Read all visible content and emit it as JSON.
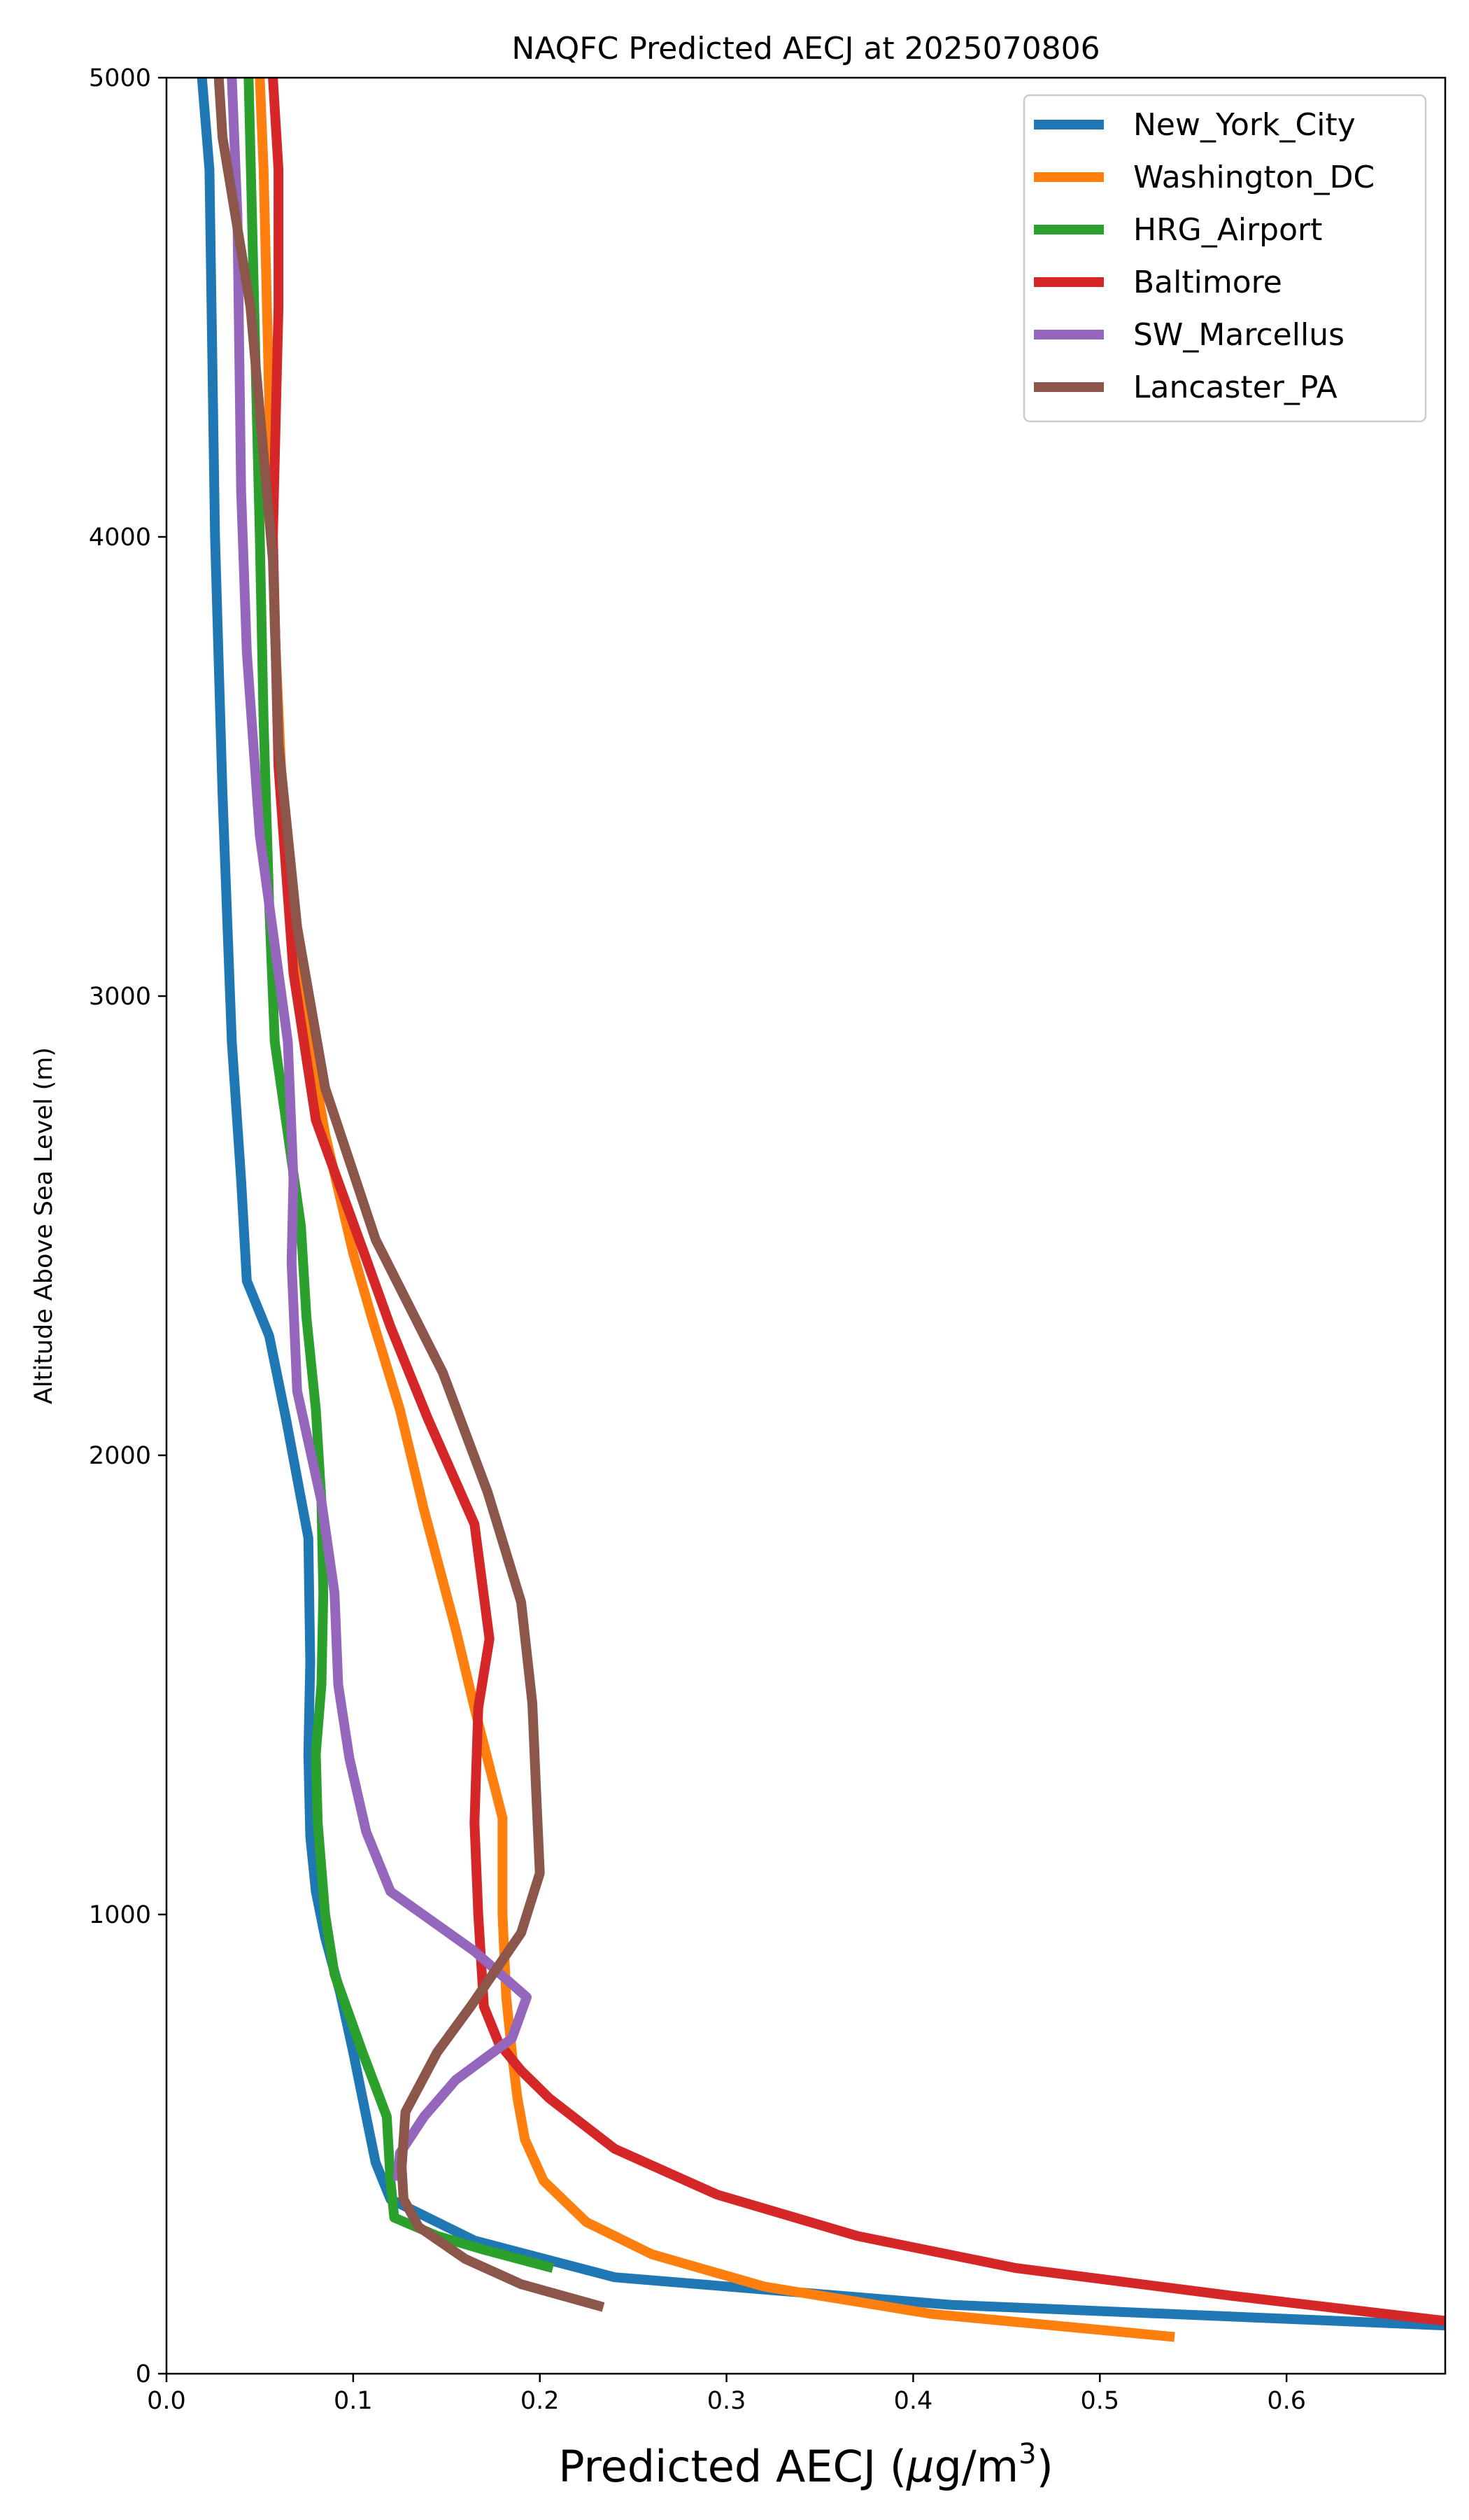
{
  "chart_data": {
    "type": "line",
    "title": "NAQFC Predicted AECJ at 2025070806",
    "xlabel_main": "Predicted AECJ (",
    "xlabel_mu": "μ",
    "xlabel_units": "g/m",
    "xlabel_sup": "3",
    "xlabel_close": ")",
    "ylabel": "Altitude Above Sea Level (m)",
    "xlim": [
      0,
      0.685
    ],
    "ylim": [
      0,
      5000
    ],
    "xticks": [
      0.0,
      0.1,
      0.2,
      0.3,
      0.4,
      0.5,
      0.6
    ],
    "xtick_labels": [
      "0.0",
      "0.1",
      "0.2",
      "0.3",
      "0.4",
      "0.5",
      "0.6"
    ],
    "yticks": [
      0,
      1000,
      2000,
      3000,
      4000,
      5000
    ],
    "ytick_labels": [
      "0",
      "1000",
      "2000",
      "3000",
      "4000",
      "5000"
    ],
    "grid": false,
    "legend_position": "top-right",
    "series": [
      {
        "name": "New_York_City",
        "color": "#1f77b4",
        "points": [
          [
            0.685,
            105
          ],
          [
            0.42,
            150
          ],
          [
            0.24,
            210
          ],
          [
            0.165,
            290
          ],
          [
            0.12,
            380
          ],
          [
            0.112,
            460
          ],
          [
            0.108,
            540
          ],
          [
            0.1,
            700
          ],
          [
            0.093,
            830
          ],
          [
            0.085,
            950
          ],
          [
            0.08,
            1050
          ],
          [
            0.077,
            1170
          ],
          [
            0.076,
            1350
          ],
          [
            0.077,
            1550
          ],
          [
            0.076,
            1820
          ],
          [
            0.064,
            2080
          ],
          [
            0.055,
            2260
          ],
          [
            0.043,
            2380
          ],
          [
            0.04,
            2600
          ],
          [
            0.035,
            2900
          ],
          [
            0.03,
            3440
          ],
          [
            0.026,
            4000
          ],
          [
            0.023,
            4800
          ],
          [
            0.019,
            5000
          ]
        ]
      },
      {
        "name": "Washington_DC",
        "color": "#ff7f0e",
        "points": [
          [
            0.54,
            80
          ],
          [
            0.41,
            130
          ],
          [
            0.32,
            190
          ],
          [
            0.26,
            260
          ],
          [
            0.225,
            330
          ],
          [
            0.202,
            420
          ],
          [
            0.192,
            510
          ],
          [
            0.188,
            600
          ],
          [
            0.185,
            700
          ],
          [
            0.182,
            820
          ],
          [
            0.18,
            1000
          ],
          [
            0.18,
            1210
          ],
          [
            0.165,
            1450
          ],
          [
            0.155,
            1620
          ],
          [
            0.138,
            1880
          ],
          [
            0.125,
            2100
          ],
          [
            0.11,
            2300
          ],
          [
            0.1,
            2440
          ],
          [
            0.085,
            2700
          ],
          [
            0.072,
            3000
          ],
          [
            0.063,
            3350
          ],
          [
            0.058,
            3800
          ],
          [
            0.055,
            4300
          ],
          [
            0.052,
            4800
          ],
          [
            0.05,
            5000
          ]
        ]
      },
      {
        "name": "HRG_Airport",
        "color": "#2ca02c",
        "points": [
          [
            0.207,
            230
          ],
          [
            0.17,
            270
          ],
          [
            0.145,
            300
          ],
          [
            0.122,
            340
          ],
          [
            0.12,
            420
          ],
          [
            0.118,
            560
          ],
          [
            0.105,
            700
          ],
          [
            0.09,
            870
          ],
          [
            0.085,
            1000
          ],
          [
            0.081,
            1200
          ],
          [
            0.08,
            1350
          ],
          [
            0.083,
            1500
          ],
          [
            0.084,
            1700
          ],
          [
            0.083,
            1900
          ],
          [
            0.08,
            2100
          ],
          [
            0.075,
            2300
          ],
          [
            0.072,
            2500
          ],
          [
            0.065,
            2700
          ],
          [
            0.058,
            2900
          ],
          [
            0.055,
            3200
          ],
          [
            0.052,
            3600
          ],
          [
            0.05,
            4000
          ],
          [
            0.047,
            4500
          ],
          [
            0.044,
            5000
          ]
        ]
      },
      {
        "name": "Baltimore",
        "color": "#d62728",
        "points": [
          [
            0.685,
            115
          ],
          [
            0.57,
            170
          ],
          [
            0.455,
            230
          ],
          [
            0.37,
            300
          ],
          [
            0.295,
            390
          ],
          [
            0.24,
            490
          ],
          [
            0.205,
            600
          ],
          [
            0.19,
            660
          ],
          [
            0.178,
            720
          ],
          [
            0.17,
            800
          ],
          [
            0.167,
            1000
          ],
          [
            0.165,
            1200
          ],
          [
            0.167,
            1450
          ],
          [
            0.173,
            1600
          ],
          [
            0.165,
            1850
          ],
          [
            0.14,
            2080
          ],
          [
            0.12,
            2280
          ],
          [
            0.105,
            2450
          ],
          [
            0.08,
            2730
          ],
          [
            0.068,
            3050
          ],
          [
            0.06,
            3500
          ],
          [
            0.057,
            4000
          ],
          [
            0.06,
            4500
          ],
          [
            0.06,
            4800
          ],
          [
            0.057,
            5000
          ]
        ]
      },
      {
        "name": "SW_Marcellus",
        "color": "#9467bd",
        "points": [
          [
            0.124,
            420
          ],
          [
            0.125,
            480
          ],
          [
            0.138,
            560
          ],
          [
            0.155,
            640
          ],
          [
            0.185,
            730
          ],
          [
            0.193,
            820
          ],
          [
            0.165,
            920
          ],
          [
            0.12,
            1050
          ],
          [
            0.107,
            1180
          ],
          [
            0.098,
            1340
          ],
          [
            0.092,
            1500
          ],
          [
            0.09,
            1700
          ],
          [
            0.083,
            1900
          ],
          [
            0.07,
            2140
          ],
          [
            0.067,
            2420
          ],
          [
            0.068,
            2600
          ],
          [
            0.065,
            2900
          ],
          [
            0.05,
            3350
          ],
          [
            0.043,
            3750
          ],
          [
            0.04,
            4100
          ],
          [
            0.038,
            4700
          ],
          [
            0.035,
            5000
          ]
        ]
      },
      {
        "name": "Lancaster_PA",
        "color": "#8c564b",
        "points": [
          [
            0.234,
            145
          ],
          [
            0.19,
            195
          ],
          [
            0.16,
            250
          ],
          [
            0.135,
            320
          ],
          [
            0.127,
            380
          ],
          [
            0.126,
            450
          ],
          [
            0.128,
            570
          ],
          [
            0.145,
            700
          ],
          [
            0.163,
            800
          ],
          [
            0.19,
            960
          ],
          [
            0.2,
            1090
          ],
          [
            0.198,
            1270
          ],
          [
            0.196,
            1460
          ],
          [
            0.19,
            1680
          ],
          [
            0.172,
            1920
          ],
          [
            0.148,
            2180
          ],
          [
            0.112,
            2470
          ],
          [
            0.085,
            2800
          ],
          [
            0.07,
            3150
          ],
          [
            0.06,
            3550
          ],
          [
            0.057,
            3950
          ],
          [
            0.045,
            4500
          ],
          [
            0.03,
            4870
          ],
          [
            0.028,
            5000
          ]
        ]
      }
    ]
  }
}
